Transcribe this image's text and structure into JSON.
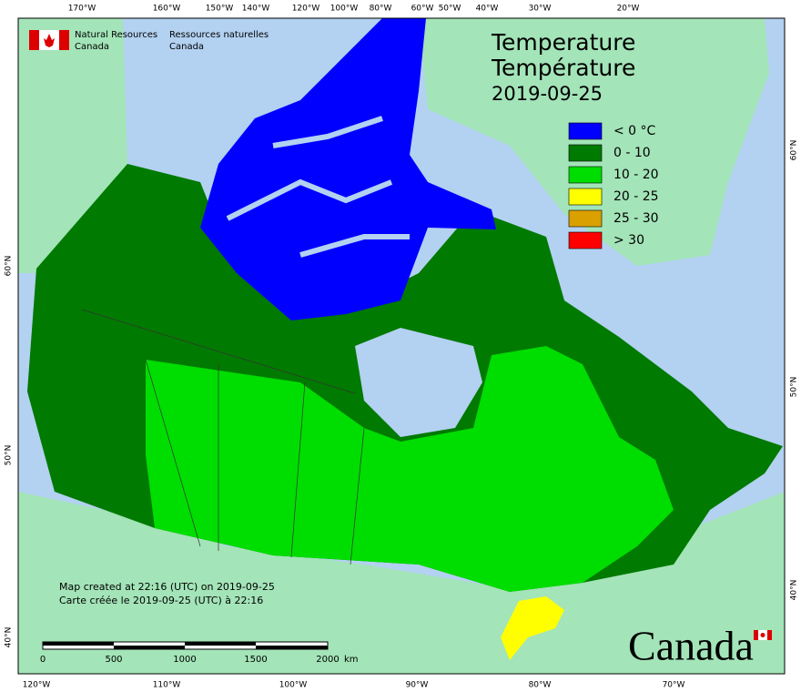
{
  "header": {
    "agency_en": [
      "Natural Resources",
      "Canada"
    ],
    "agency_fr": [
      "Ressources naturelles",
      "Canada"
    ]
  },
  "title": [
    "Temperature",
    "Température",
    "2019-09-25"
  ],
  "legend": [
    {
      "label": "< 0 °C",
      "color": "#0000ff"
    },
    {
      "label": "0 - 10",
      "color": "#007a00"
    },
    {
      "label": "10 - 20",
      "color": "#00dd00"
    },
    {
      "label": "20 - 25",
      "color": "#ffff00"
    },
    {
      "label": "25 - 30",
      "color": "#d9a000"
    },
    {
      "label": "> 30",
      "color": "#ff0000"
    }
  ],
  "graticule": {
    "top": [
      "170°W",
      "160°W",
      "150°W",
      "140°W",
      "120°W",
      "100°W",
      "80°W",
      "60°W",
      "50°W",
      "40°W",
      "30°W",
      "20°W"
    ],
    "bottom": [
      "120°W",
      "110°W",
      "100°W",
      "90°W",
      "80°W",
      "70°W"
    ],
    "left": [
      "60°N",
      "50°N",
      "40°N"
    ],
    "right": [
      "60°N",
      "50°N",
      "40°N"
    ]
  },
  "credits": [
    "Map created at 22:16 (UTC) on 2019-09-25",
    "Carte créée le 2019-09-25 (UTC) à 22:16"
  ],
  "scale": {
    "ticks": [
      "0",
      "500",
      "1000",
      "1500",
      "2000"
    ],
    "unit": "km"
  },
  "wordmark": "Canada"
}
